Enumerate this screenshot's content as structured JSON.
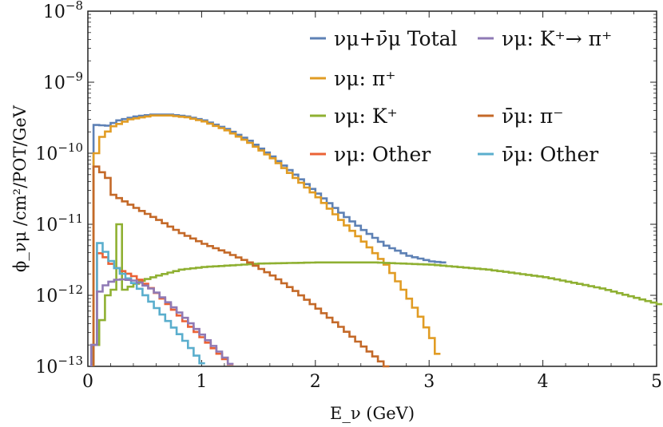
{
  "chart_data": {
    "type": "line",
    "step": true,
    "xlabel": "E_ν (GeV)",
    "ylabel": "ϕ_νμ /cm²/POT/GeV",
    "xlim": [
      0,
      5
    ],
    "ylim": [
      1e-13,
      1e-08
    ],
    "yscale": "log",
    "grid": false,
    "legend_position": "top-right",
    "x_ticks": [
      0,
      1,
      2,
      3,
      4,
      5
    ],
    "y_ticks": [
      1e-13,
      1e-12,
      1e-11,
      1e-10,
      1e-09,
      1e-08
    ],
    "y_tick_labels": [
      {
        "base": "10",
        "exp": "−13"
      },
      {
        "base": "10",
        "exp": "−12"
      },
      {
        "base": "10",
        "exp": "−11"
      },
      {
        "base": "10",
        "exp": "−10"
      },
      {
        "base": "10",
        "exp": "−9"
      },
      {
        "base": "10",
        "exp": "−8"
      }
    ],
    "series": [
      {
        "name": "νμ+ν̄μ Total",
        "color": "#5E81B5",
        "points": [
          [
            0.05,
            2.5e-10
          ],
          [
            0.15,
            2.45e-10
          ],
          [
            0.25,
            2.9e-10
          ],
          [
            0.4,
            3.3e-10
          ],
          [
            0.55,
            3.5e-10
          ],
          [
            0.7,
            3.5e-10
          ],
          [
            0.85,
            3.3e-10
          ],
          [
            1.0,
            2.9e-10
          ],
          [
            1.2,
            2.2e-10
          ],
          [
            1.4,
            1.5e-10
          ],
          [
            1.6,
            9e-11
          ],
          [
            1.8,
            5e-11
          ],
          [
            2.0,
            2.7e-11
          ],
          [
            2.2,
            1.45e-11
          ],
          [
            2.4,
            8.3e-12
          ],
          [
            2.6,
            5e-12
          ],
          [
            2.8,
            3.6e-12
          ],
          [
            3.0,
            3e-12
          ],
          [
            3.1,
            2.9e-12
          ]
        ]
      },
      {
        "name": "νμ: π⁺",
        "color": "#E19C24",
        "points": [
          [
            0.05,
            1e-10
          ],
          [
            0.1,
            1.7e-10
          ],
          [
            0.2,
            2.4e-10
          ],
          [
            0.35,
            3e-10
          ],
          [
            0.55,
            3.4e-10
          ],
          [
            0.7,
            3.4e-10
          ],
          [
            0.85,
            3.2e-10
          ],
          [
            1.0,
            2.8e-10
          ],
          [
            1.2,
            2.1e-10
          ],
          [
            1.4,
            1.4e-10
          ],
          [
            1.6,
            8.5e-11
          ],
          [
            1.8,
            4.5e-11
          ],
          [
            2.0,
            2.4e-11
          ],
          [
            2.2,
            1.15e-11
          ],
          [
            2.4,
            5.7e-12
          ],
          [
            2.6,
            2.7e-12
          ],
          [
            2.75,
            1.2e-12
          ],
          [
            2.9,
            5e-13
          ],
          [
            3.0,
            2.5e-13
          ],
          [
            3.05,
            1.5e-13
          ]
        ]
      },
      {
        "name": "νμ: K⁺",
        "color": "#8FB032",
        "points": [
          [
            0.05,
            2e-13
          ],
          [
            0.15,
            1e-12
          ],
          [
            0.2,
            1.2e-12
          ],
          [
            0.25,
            1e-11
          ],
          [
            0.3,
            1.2e-12
          ],
          [
            0.45,
            1.6e-12
          ],
          [
            0.6,
            1.9e-12
          ],
          [
            0.8,
            2.3e-12
          ],
          [
            1.0,
            2.5e-12
          ],
          [
            1.5,
            2.8e-12
          ],
          [
            2.0,
            2.9e-12
          ],
          [
            2.5,
            2.9e-12
          ],
          [
            3.0,
            2.7e-12
          ],
          [
            3.5,
            2.3e-12
          ],
          [
            4.0,
            1.8e-12
          ],
          [
            4.5,
            1.25e-12
          ],
          [
            5.0,
            7.5e-13
          ]
        ]
      },
      {
        "name": "ν̄μ: π⁻",
        "color": "#C46928",
        "points": [
          [
            0.05,
            6.5e-11
          ],
          [
            0.15,
            4.5e-11
          ],
          [
            0.2,
            2.6e-11
          ],
          [
            0.4,
            1.7e-11
          ],
          [
            0.6,
            1.15e-11
          ],
          [
            0.8,
            7.5e-12
          ],
          [
            1.0,
            5.3e-12
          ],
          [
            1.2,
            4e-12
          ],
          [
            1.4,
            2.9e-12
          ],
          [
            1.6,
            1.9e-12
          ],
          [
            1.8,
            1.15e-12
          ],
          [
            2.0,
            6.5e-13
          ],
          [
            2.2,
            3.6e-13
          ],
          [
            2.4,
            1.9e-13
          ],
          [
            2.6,
            1e-13
          ]
        ]
      },
      {
        "name": "νμ: Other",
        "color": "#EB6235",
        "points": [
          [
            0.03,
            2e-13
          ],
          [
            0.05,
            3.5e-12
          ],
          [
            0.1,
            4.2e-12
          ],
          [
            0.15,
            3e-12
          ],
          [
            0.25,
            2.3e-12
          ],
          [
            0.4,
            1.8e-12
          ],
          [
            0.55,
            1.2e-12
          ],
          [
            0.7,
            7e-13
          ],
          [
            0.85,
            4e-13
          ],
          [
            1.0,
            2.4e-13
          ],
          [
            1.15,
            1.4e-13
          ],
          [
            1.25,
            1e-13
          ]
        ]
      },
      {
        "name": "ν̄μ: Other",
        "color": "#5AAECD",
        "points": [
          [
            0.03,
            2e-13
          ],
          [
            0.05,
            5.8e-12
          ],
          [
            0.1,
            5.2e-12
          ],
          [
            0.15,
            3.5e-12
          ],
          [
            0.25,
            2.2e-12
          ],
          [
            0.4,
            1.4e-12
          ],
          [
            0.55,
            7.5e-13
          ],
          [
            0.7,
            4e-13
          ],
          [
            0.85,
            2.1e-13
          ],
          [
            1.0,
            1e-13
          ]
        ]
      },
      {
        "name": "νμ: K⁺→ π⁺",
        "color": "#8F7AB5",
        "points": [
          [
            0.03,
            2e-13
          ],
          [
            0.05,
            1e-12
          ],
          [
            0.15,
            1.5e-12
          ],
          [
            0.25,
            1.7e-12
          ],
          [
            0.4,
            1.6e-12
          ],
          [
            0.55,
            1.2e-12
          ],
          [
            0.7,
            7.5e-13
          ],
          [
            0.85,
            4.5e-13
          ],
          [
            1.0,
            2.6e-13
          ],
          [
            1.15,
            1.5e-13
          ],
          [
            1.25,
            1e-13
          ]
        ]
      }
    ],
    "legend_layout": [
      {
        "series": 0,
        "col": 0,
        "row": 0
      },
      {
        "series": 6,
        "col": 1,
        "row": 0
      },
      {
        "series": 1,
        "col": 0,
        "row": 1
      },
      {
        "series": 2,
        "col": 0,
        "row": 2
      },
      {
        "series": 3,
        "col": 1,
        "row": 2
      },
      {
        "series": 4,
        "col": 0,
        "row": 3
      },
      {
        "series": 5,
        "col": 1,
        "row": 3
      }
    ]
  }
}
